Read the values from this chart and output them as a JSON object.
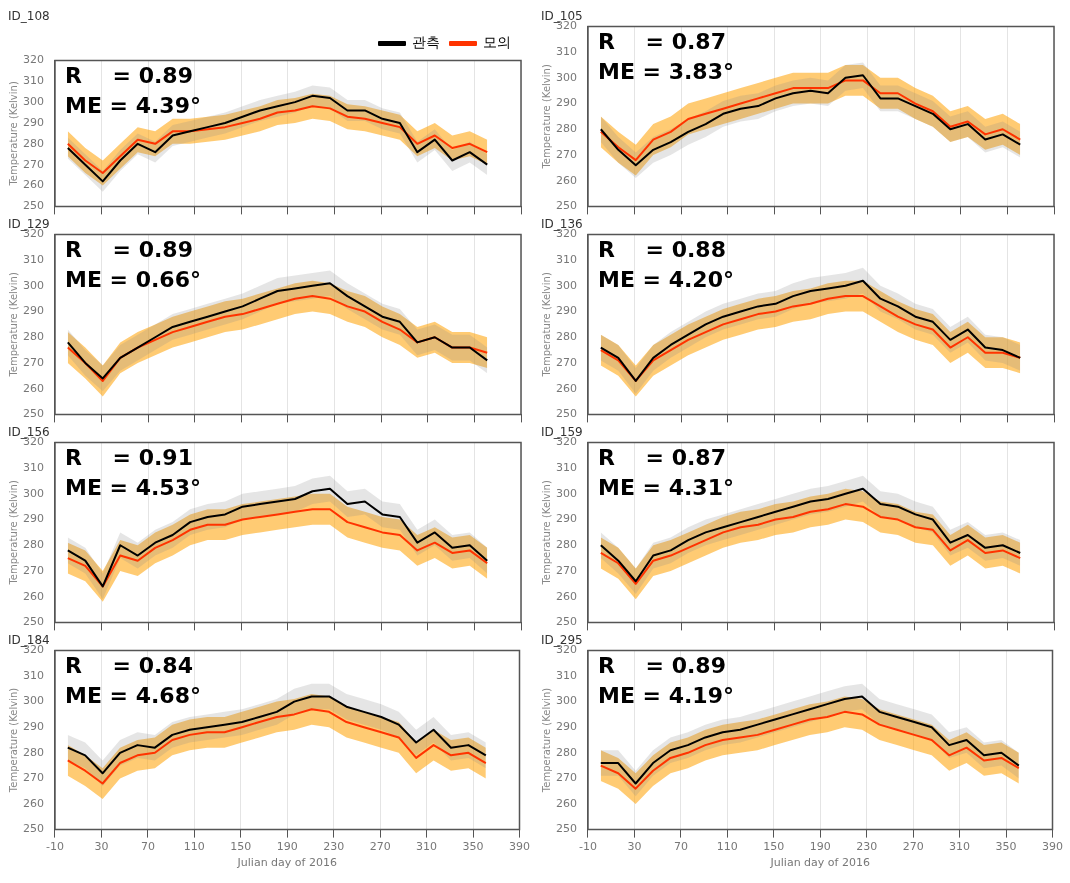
{
  "chart_data": [
    {
      "type": "line",
      "title": "ID_108",
      "ylabel": "Temperature (Kelvin)",
      "annotations": [
        "R    = 0.89",
        "ME = 4.39°"
      ],
      "legend": "top right",
      "tick_labels": "y",
      "grid": "x",
      "xlim": [
        -10,
        390
      ],
      "xticks": [
        -10,
        30,
        70,
        110,
        150,
        190,
        230,
        270,
        310,
        350,
        390
      ],
      "ylim": [
        250,
        320
      ],
      "yticks": [
        250,
        260,
        270,
        280,
        290,
        300,
        310,
        320
      ],
      "x": [
        1,
        16,
        31,
        46,
        61,
        76,
        91,
        106,
        121,
        136,
        151,
        166,
        181,
        196,
        211,
        226,
        241,
        256,
        271,
        286,
        301,
        316,
        331,
        346,
        361
      ],
      "series": [
        {
          "name": "관측",
          "color": "#000000",
          "values": [
            278,
            270,
            262,
            272,
            280,
            276,
            284,
            286,
            288,
            290,
            293,
            296,
            298,
            300,
            303,
            302,
            296,
            296,
            292,
            290,
            276,
            282,
            272,
            276,
            270
          ],
          "lower": [
            273,
            265,
            257,
            267,
            275,
            271,
            279,
            281,
            283,
            285,
            288,
            291,
            293,
            295,
            298,
            297,
            291,
            291,
            287,
            285,
            271,
            277,
            267,
            271,
            265
          ],
          "upper": [
            283,
            275,
            267,
            277,
            285,
            281,
            289,
            291,
            293,
            295,
            298,
            301,
            303,
            305,
            308,
            307,
            301,
            301,
            297,
            295,
            281,
            287,
            277,
            281,
            275
          ]
        },
        {
          "name": "모의",
          "color": "#ff3300",
          "values": [
            280,
            272,
            266,
            274,
            282,
            280,
            286,
            286,
            287,
            288,
            290,
            292,
            295,
            296,
            298,
            297,
            293,
            292,
            290,
            288,
            280,
            284,
            278,
            280,
            276
          ],
          "lower": [
            274,
            266,
            260,
            268,
            276,
            274,
            280,
            280,
            281,
            282,
            284,
            286,
            289,
            290,
            292,
            291,
            287,
            286,
            284,
            282,
            274,
            278,
            272,
            274,
            270
          ],
          "upper": [
            286,
            278,
            272,
            280,
            288,
            286,
            292,
            292,
            293,
            294,
            296,
            298,
            301,
            302,
            304,
            303,
            299,
            298,
            296,
            294,
            286,
            290,
            284,
            286,
            282
          ]
        }
      ]
    },
    {
      "type": "line",
      "title": "ID_105",
      "ylabel": "Temperature (Kelvin)",
      "annotations": [
        "R    = 0.87",
        "ME = 3.83°"
      ],
      "tick_labels": "y",
      "grid": "x",
      "xlim": [
        -10,
        390
      ],
      "xticks": [
        -10,
        30,
        70,
        110,
        150,
        190,
        230,
        270,
        310,
        350,
        390
      ],
      "ylim": [
        250,
        320
      ],
      "yticks": [
        250,
        260,
        270,
        280,
        290,
        300,
        310,
        320
      ],
      "x": [
        1,
        16,
        31,
        46,
        61,
        76,
        91,
        106,
        121,
        136,
        151,
        166,
        181,
        196,
        211,
        226,
        241,
        256,
        271,
        286,
        301,
        316,
        331,
        346,
        361
      ],
      "series": [
        {
          "color": "#000000",
          "values": [
            280,
            272,
            266,
            272,
            275,
            279,
            282,
            286,
            288,
            289,
            292,
            294,
            295,
            294,
            300,
            301,
            292,
            292,
            289,
            286,
            280,
            282,
            276,
            278,
            274
          ],
          "lower": [
            275,
            267,
            261,
            267,
            270,
            274,
            277,
            281,
            283,
            284,
            287,
            289,
            290,
            289,
            295,
            296,
            287,
            287,
            284,
            281,
            275,
            277,
            271,
            273,
            269
          ],
          "upper": [
            285,
            277,
            271,
            277,
            280,
            284,
            287,
            291,
            293,
            294,
            297,
            299,
            300,
            299,
            305,
            306,
            297,
            297,
            294,
            291,
            285,
            287,
            281,
            283,
            279
          ]
        },
        {
          "color": "#ff3300",
          "values": [
            279,
            273,
            268,
            276,
            279,
            284,
            286,
            288,
            290,
            292,
            294,
            296,
            296,
            296,
            299,
            299,
            294,
            294,
            290,
            287,
            281,
            283,
            278,
            280,
            276
          ],
          "lower": [
            273,
            267,
            262,
            270,
            273,
            278,
            280,
            282,
            284,
            286,
            288,
            290,
            290,
            290,
            293,
            293,
            288,
            288,
            284,
            281,
            275,
            277,
            272,
            274,
            270
          ],
          "upper": [
            285,
            279,
            274,
            282,
            285,
            290,
            292,
            294,
            296,
            298,
            300,
            302,
            302,
            302,
            305,
            305,
            300,
            300,
            296,
            293,
            287,
            289,
            284,
            286,
            282
          ]
        }
      ]
    },
    {
      "type": "line",
      "title": "ID_129",
      "ylabel": "Temperature (Kelvin)",
      "annotations": [
        "R    = 0.89",
        "ME = 0.66°"
      ],
      "tick_labels": "y",
      "grid": "x",
      "xlim": [
        -10,
        390
      ],
      "xticks": [
        -10,
        30,
        70,
        110,
        150,
        190,
        230,
        270,
        310,
        350,
        390
      ],
      "ylim": [
        250,
        320
      ],
      "yticks": [
        250,
        260,
        270,
        280,
        290,
        300,
        310,
        320
      ],
      "x": [
        1,
        16,
        31,
        46,
        61,
        76,
        91,
        106,
        121,
        136,
        151,
        166,
        181,
        196,
        211,
        226,
        241,
        256,
        271,
        286,
        301,
        316,
        331,
        346,
        361
      ],
      "series": [
        {
          "color": "#000000",
          "values": [
            278,
            270,
            264,
            272,
            276,
            280,
            284,
            286,
            288,
            290,
            292,
            295,
            298,
            299,
            300,
            301,
            296,
            292,
            288,
            286,
            278,
            280,
            276,
            276,
            271
          ],
          "lower": [
            273,
            265,
            259,
            267,
            271,
            275,
            279,
            281,
            283,
            285,
            287,
            290,
            293,
            294,
            295,
            296,
            291,
            287,
            283,
            281,
            273,
            275,
            271,
            271,
            266
          ],
          "upper": [
            283,
            275,
            269,
            277,
            281,
            285,
            289,
            291,
            293,
            295,
            297,
            300,
            303,
            304,
            305,
            306,
            301,
            297,
            293,
            291,
            283,
            285,
            281,
            281,
            276
          ]
        },
        {
          "color": "#ff3300",
          "values": [
            276,
            270,
            263,
            272,
            276,
            279,
            282,
            284,
            286,
            288,
            289,
            291,
            293,
            295,
            296,
            295,
            292,
            290,
            286,
            283,
            278,
            280,
            276,
            276,
            274
          ],
          "lower": [
            270,
            264,
            257,
            266,
            270,
            273,
            276,
            278,
            280,
            282,
            283,
            285,
            287,
            289,
            290,
            289,
            286,
            284,
            280,
            277,
            272,
            274,
            270,
            270,
            268
          ],
          "upper": [
            282,
            276,
            269,
            278,
            282,
            285,
            288,
            290,
            292,
            294,
            295,
            297,
            299,
            301,
            302,
            301,
            298,
            296,
            292,
            289,
            284,
            286,
            282,
            282,
            280
          ]
        }
      ]
    },
    {
      "type": "line",
      "title": "ID_136",
      "ylabel": "Temperature (Kelvin)",
      "annotations": [
        "R    = 0.88",
        "ME = 4.20°"
      ],
      "tick_labels": "y",
      "grid": "x",
      "xlim": [
        -10,
        390
      ],
      "xticks": [
        -10,
        30,
        70,
        110,
        150,
        190,
        230,
        270,
        310,
        350,
        390
      ],
      "ylim": [
        250,
        320
      ],
      "yticks": [
        250,
        260,
        270,
        280,
        290,
        300,
        310,
        320
      ],
      "x": [
        1,
        16,
        31,
        46,
        61,
        76,
        91,
        106,
        121,
        136,
        151,
        166,
        181,
        196,
        211,
        226,
        241,
        256,
        271,
        286,
        301,
        316,
        331,
        346,
        361
      ],
      "series": [
        {
          "color": "#000000",
          "values": [
            276,
            272,
            263,
            272,
            277,
            281,
            285,
            288,
            290,
            292,
            293,
            296,
            298,
            299,
            300,
            302,
            295,
            292,
            288,
            286,
            279,
            283,
            276,
            275,
            272
          ],
          "lower": [
            271,
            267,
            258,
            267,
            272,
            276,
            280,
            283,
            285,
            287,
            288,
            291,
            293,
            294,
            295,
            297,
            290,
            287,
            283,
            281,
            274,
            278,
            271,
            270,
            267
          ],
          "upper": [
            281,
            277,
            268,
            277,
            282,
            286,
            290,
            293,
            295,
            297,
            298,
            301,
            303,
            304,
            305,
            307,
            300,
            297,
            293,
            291,
            284,
            288,
            281,
            280,
            277
          ]
        },
        {
          "color": "#ff3300",
          "values": [
            275,
            271,
            263,
            271,
            275,
            279,
            282,
            285,
            287,
            289,
            290,
            292,
            293,
            295,
            296,
            296,
            292,
            288,
            285,
            283,
            276,
            280,
            274,
            274,
            272
          ],
          "lower": [
            269,
            265,
            257,
            265,
            269,
            273,
            276,
            279,
            281,
            283,
            284,
            286,
            287,
            289,
            290,
            290,
            286,
            282,
            279,
            277,
            270,
            274,
            268,
            268,
            266
          ],
          "upper": [
            281,
            277,
            269,
            277,
            281,
            285,
            288,
            291,
            293,
            295,
            296,
            298,
            299,
            301,
            302,
            302,
            298,
            294,
            291,
            289,
            282,
            286,
            280,
            280,
            278
          ]
        }
      ]
    },
    {
      "type": "line",
      "title": "ID_156",
      "ylabel": "Temperature (Kelvin)",
      "annotations": [
        "R    = 0.91",
        "ME = 4.53°"
      ],
      "tick_labels": "y",
      "grid": "x",
      "xlim": [
        -10,
        390
      ],
      "xticks": [
        -10,
        30,
        70,
        110,
        150,
        190,
        230,
        270,
        310,
        350,
        390
      ],
      "ylim": [
        250,
        320
      ],
      "yticks": [
        250,
        260,
        270,
        280,
        290,
        300,
        310,
        320
      ],
      "x": [
        1,
        16,
        31,
        46,
        61,
        76,
        91,
        106,
        121,
        136,
        151,
        166,
        181,
        196,
        211,
        226,
        241,
        256,
        271,
        286,
        301,
        316,
        331,
        346,
        361
      ],
      "series": [
        {
          "color": "#000000",
          "values": [
            278,
            274,
            264,
            280,
            276,
            281,
            284,
            289,
            291,
            292,
            295,
            296,
            297,
            298,
            301,
            302,
            296,
            297,
            292,
            291,
            281,
            285,
            279,
            280,
            274
          ],
          "lower": [
            273,
            269,
            259,
            275,
            271,
            276,
            279,
            284,
            286,
            287,
            290,
            291,
            292,
            293,
            296,
            297,
            291,
            292,
            287,
            286,
            276,
            280,
            274,
            275,
            269
          ],
          "upper": [
            283,
            279,
            269,
            285,
            281,
            286,
            289,
            294,
            296,
            297,
            300,
            301,
            302,
            303,
            306,
            307,
            301,
            302,
            297,
            296,
            286,
            290,
            284,
            285,
            279
          ]
        },
        {
          "color": "#ff3300",
          "values": [
            275,
            272,
            264,
            276,
            274,
            279,
            282,
            286,
            288,
            288,
            290,
            291,
            292,
            293,
            294,
            294,
            289,
            287,
            285,
            284,
            278,
            281,
            277,
            278,
            273
          ],
          "lower": [
            269,
            266,
            258,
            270,
            268,
            273,
            276,
            280,
            282,
            282,
            284,
            285,
            286,
            287,
            288,
            288,
            283,
            281,
            279,
            278,
            272,
            275,
            271,
            272,
            267
          ],
          "upper": [
            281,
            278,
            270,
            282,
            280,
            285,
            288,
            292,
            294,
            294,
            296,
            297,
            298,
            299,
            300,
            300,
            295,
            293,
            291,
            290,
            284,
            287,
            283,
            284,
            279
          ]
        }
      ]
    },
    {
      "type": "line",
      "title": "ID_159",
      "ylabel": "Temperature (Kelvin)",
      "annotations": [
        "R    = 0.87",
        "ME = 4.31°"
      ],
      "tick_labels": "y",
      "grid": "x",
      "xlim": [
        -10,
        390
      ],
      "xticks": [
        -10,
        30,
        70,
        110,
        150,
        190,
        230,
        270,
        310,
        350,
        390
      ],
      "ylim": [
        250,
        320
      ],
      "yticks": [
        250,
        260,
        270,
        280,
        290,
        300,
        310,
        320
      ],
      "x": [
        1,
        16,
        31,
        46,
        61,
        76,
        91,
        106,
        121,
        136,
        151,
        166,
        181,
        196,
        211,
        226,
        241,
        256,
        271,
        286,
        301,
        316,
        331,
        346,
        361
      ],
      "series": [
        {
          "color": "#000000",
          "values": [
            280,
            274,
            266,
            276,
            278,
            282,
            285,
            287,
            289,
            291,
            293,
            295,
            297,
            298,
            300,
            302,
            296,
            295,
            292,
            290,
            281,
            284,
            279,
            280,
            277
          ],
          "lower": [
            275,
            269,
            261,
            271,
            273,
            277,
            280,
            282,
            284,
            286,
            288,
            290,
            292,
            293,
            295,
            297,
            291,
            290,
            287,
            285,
            276,
            279,
            274,
            275,
            272
          ],
          "upper": [
            285,
            279,
            271,
            281,
            283,
            287,
            290,
            292,
            294,
            296,
            298,
            300,
            302,
            303,
            305,
            307,
            301,
            300,
            297,
            295,
            286,
            289,
            284,
            285,
            282
          ]
        },
        {
          "color": "#ff3300",
          "values": [
            277,
            273,
            265,
            274,
            276,
            279,
            282,
            285,
            287,
            288,
            290,
            291,
            293,
            294,
            296,
            295,
            291,
            290,
            287,
            286,
            278,
            282,
            277,
            278,
            275
          ],
          "lower": [
            271,
            267,
            259,
            268,
            270,
            273,
            276,
            279,
            281,
            282,
            284,
            285,
            287,
            288,
            290,
            289,
            285,
            284,
            281,
            280,
            272,
            276,
            271,
            272,
            269
          ],
          "upper": [
            283,
            279,
            271,
            280,
            282,
            285,
            288,
            291,
            293,
            294,
            296,
            297,
            299,
            300,
            302,
            301,
            297,
            296,
            293,
            292,
            284,
            288,
            283,
            284,
            281
          ]
        }
      ]
    },
    {
      "type": "line",
      "title": "ID_184",
      "xlabel": "Julian day of 2016",
      "ylabel": "Temperature (Kelvin)",
      "annotations": [
        "R    = 0.84",
        "ME = 4.68°"
      ],
      "grid": "x",
      "xlim": [
        -10,
        390
      ],
      "xticks": [
        -10,
        30,
        70,
        110,
        150,
        190,
        230,
        270,
        310,
        350,
        390
      ],
      "ylim": [
        250,
        320
      ],
      "yticks": [
        250,
        260,
        270,
        280,
        290,
        300,
        310,
        320
      ],
      "x": [
        1,
        16,
        31,
        46,
        61,
        76,
        91,
        106,
        121,
        136,
        151,
        166,
        181,
        196,
        211,
        226,
        241,
        256,
        271,
        286,
        301,
        316,
        331,
        346,
        361
      ],
      "series": [
        {
          "color": "#000000",
          "values": [
            282,
            279,
            272,
            280,
            283,
            282,
            287,
            289,
            290,
            291,
            292,
            294,
            296,
            300,
            302,
            302,
            298,
            296,
            294,
            291,
            284,
            289,
            282,
            283,
            279
          ],
          "lower": [
            277,
            274,
            267,
            275,
            278,
            277,
            282,
            284,
            285,
            286,
            287,
            289,
            291,
            295,
            297,
            297,
            293,
            291,
            289,
            286,
            279,
            284,
            277,
            278,
            274
          ],
          "upper": [
            287,
            284,
            277,
            285,
            288,
            287,
            292,
            294,
            295,
            296,
            297,
            299,
            301,
            305,
            307,
            307,
            303,
            301,
            299,
            296,
            289,
            294,
            287,
            288,
            284
          ]
        },
        {
          "color": "#ff3300",
          "values": [
            277,
            273,
            268,
            276,
            279,
            280,
            285,
            287,
            288,
            288,
            290,
            292,
            294,
            295,
            297,
            296,
            292,
            290,
            288,
            286,
            278,
            283,
            279,
            280,
            276
          ],
          "lower": [
            271,
            267,
            262,
            270,
            273,
            274,
            279,
            281,
            282,
            282,
            284,
            286,
            288,
            289,
            291,
            290,
            286,
            284,
            282,
            280,
            272,
            277,
            273,
            274,
            270
          ],
          "upper": [
            283,
            279,
            274,
            282,
            285,
            286,
            291,
            293,
            294,
            294,
            296,
            298,
            300,
            301,
            303,
            302,
            298,
            296,
            294,
            292,
            284,
            289,
            285,
            286,
            282
          ]
        }
      ]
    },
    {
      "type": "line",
      "title": "ID_295",
      "xlabel": "Julian day of 2016",
      "ylabel": "Temperature (Kelvin)",
      "annotations": [
        "R    = 0.89",
        "ME = 4.19°"
      ],
      "grid": "x",
      "xlim": [
        -10,
        390
      ],
      "xticks": [
        -10,
        30,
        70,
        110,
        150,
        190,
        230,
        270,
        310,
        350,
        390
      ],
      "ylim": [
        250,
        320
      ],
      "yticks": [
        250,
        260,
        270,
        280,
        290,
        300,
        310,
        320
      ],
      "x": [
        1,
        16,
        31,
        46,
        61,
        76,
        91,
        106,
        121,
        136,
        151,
        166,
        181,
        196,
        211,
        226,
        241,
        256,
        271,
        286,
        301,
        316,
        331,
        346,
        361
      ],
      "series": [
        {
          "color": "#000000",
          "values": [
            276,
            276,
            268,
            276,
            281,
            283,
            286,
            288,
            289,
            291,
            293,
            295,
            297,
            299,
            301,
            302,
            296,
            294,
            292,
            290,
            283,
            285,
            279,
            280,
            275
          ],
          "lower": [
            271,
            271,
            263,
            271,
            276,
            278,
            281,
            283,
            284,
            286,
            288,
            290,
            292,
            294,
            296,
            297,
            291,
            289,
            287,
            285,
            278,
            280,
            274,
            275,
            270
          ],
          "upper": [
            281,
            281,
            273,
            281,
            286,
            288,
            291,
            293,
            294,
            296,
            298,
            300,
            302,
            304,
            306,
            307,
            301,
            299,
            297,
            295,
            288,
            290,
            284,
            285,
            280
          ]
        },
        {
          "color": "#ff3300",
          "values": [
            275,
            272,
            266,
            273,
            278,
            280,
            283,
            285,
            286,
            287,
            289,
            291,
            293,
            294,
            296,
            295,
            291,
            289,
            287,
            285,
            279,
            282,
            277,
            278,
            274
          ],
          "lower": [
            269,
            266,
            260,
            267,
            272,
            274,
            277,
            279,
            280,
            281,
            283,
            285,
            287,
            288,
            290,
            289,
            285,
            283,
            281,
            279,
            273,
            276,
            271,
            272,
            268
          ],
          "upper": [
            281,
            278,
            272,
            279,
            284,
            286,
            289,
            291,
            292,
            293,
            295,
            297,
            299,
            300,
            302,
            301,
            297,
            295,
            293,
            291,
            285,
            288,
            283,
            284,
            280
          ]
        }
      ]
    }
  ]
}
